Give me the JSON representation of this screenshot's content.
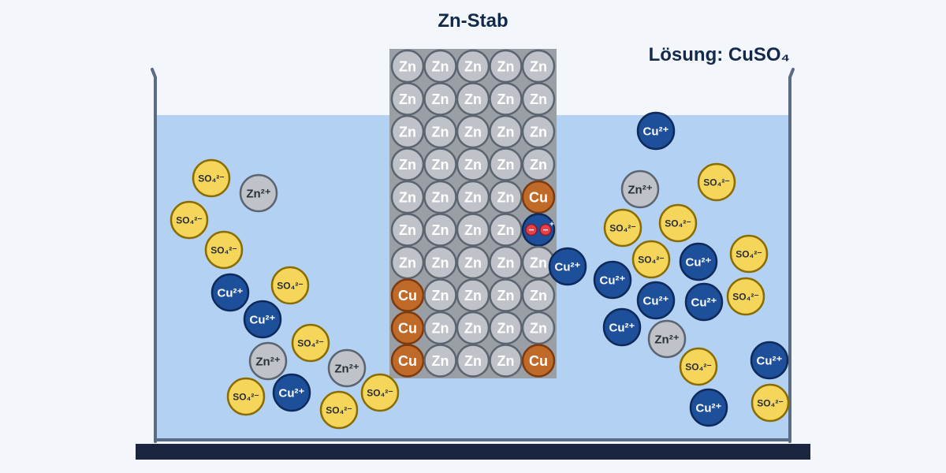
{
  "labels": {
    "rod": "Zn-Stab",
    "solution": "Lösung: CuSO₄"
  },
  "colors": {
    "background": "#f3f7fb",
    "solution": "#b3d2f3",
    "beaker": "#5a6b85",
    "base": "#1b2540",
    "rod": "#9a9ea5",
    "zn_atom": "#bfc3c9",
    "cu_atom": "#c06a2a",
    "cu_ion": "#1e4f9a",
    "so4_ion": "#f5d55a",
    "electron": "#e6404a",
    "label": "#13294b"
  },
  "rod_grid": {
    "columns": 5,
    "rows": [
      [
        "Zn",
        "Zn",
        "Zn",
        "Zn",
        "Zn"
      ],
      [
        "Zn",
        "Zn",
        "Zn",
        "Zn",
        "Zn"
      ],
      [
        "Zn",
        "Zn",
        "Zn",
        "Zn",
        "Zn"
      ],
      [
        "Zn",
        "Zn",
        "Zn",
        "Zn",
        "Zn"
      ],
      [
        "Zn",
        "Zn",
        "Zn",
        "Zn",
        "Cu"
      ],
      [
        "Zn",
        "Zn",
        "Zn",
        "Zn",
        "e"
      ],
      [
        "Zn",
        "Zn",
        "Zn",
        "Zn",
        "Zn"
      ],
      [
        "Cu",
        "Zn",
        "Zn",
        "Zn",
        "Zn"
      ],
      [
        "Cu",
        "Zn",
        "Zn",
        "Zn",
        "Zn"
      ],
      [
        "Cu",
        "Zn",
        "Zn",
        "Zn",
        "Cu"
      ]
    ]
  },
  "species": {
    "zn_atom": "Zn",
    "cu_atom": "Cu",
    "cu_ion": "Cu²⁺",
    "zn_ion": "Zn²⁺",
    "so4_ion": "SO₄²⁻",
    "electron": "−"
  },
  "ions_left_count": {
    "so4": 9,
    "cu": 3,
    "zn": 3
  },
  "ions_right_count": {
    "so4": 8,
    "cu": 8,
    "zn": 2
  }
}
